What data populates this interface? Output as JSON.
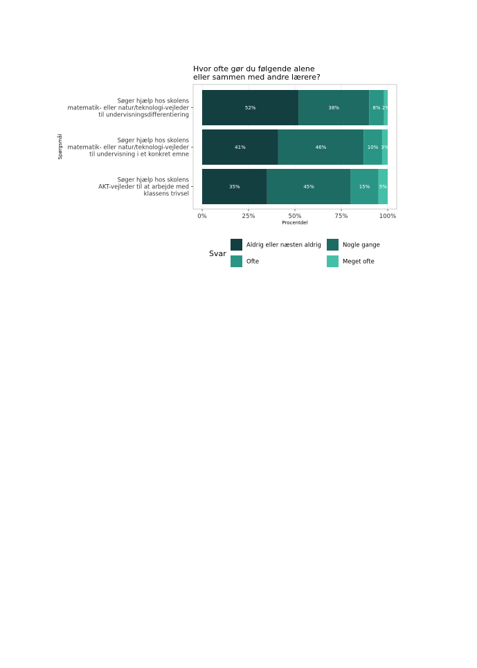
{
  "chart_data": {
    "type": "bar",
    "orientation": "horizontal",
    "stacked": true,
    "title_lines": [
      "Hvor ofte gør du følgende alene",
      "eller sammen med andre lærere?"
    ],
    "xlabel": "Procentdel",
    "ylabel": "Spørgsmål",
    "xlim": [
      0,
      100
    ],
    "x_ticks": [
      "0%",
      "25%",
      "50%",
      "75%",
      "100%"
    ],
    "x_tick_values": [
      0,
      25,
      50,
      75,
      100
    ],
    "grid": true,
    "categories": [
      [
        "Søger hjælp hos skolens",
        "matematik- eller natur/teknologi-vejleder",
        "til undervisningsdifferentiering"
      ],
      [
        "Søger hjælp hos skolens",
        "matematik- eller natur/teknologi-vejleder",
        "til undervisning i et konkret emne"
      ],
      [
        "Søger hjælp hos skolens",
        "AKT-vejleder til at arbejde med",
        "klassens trivsel"
      ]
    ],
    "series": [
      {
        "name": "Aldrig eller næsten aldrig",
        "color": "#143f41",
        "values": [
          52,
          41,
          35
        ],
        "labels": [
          "52%",
          "41%",
          "35%"
        ]
      },
      {
        "name": "Nogle gange",
        "color": "#1e6b64",
        "values": [
          38,
          46,
          45
        ],
        "labels": [
          "38%",
          "46%",
          "45%"
        ]
      },
      {
        "name": "Ofte",
        "color": "#2b9585",
        "values": [
          8,
          10,
          15
        ],
        "labels": [
          "8%",
          "10%",
          "15%"
        ]
      },
      {
        "name": "Meget ofte",
        "color": "#45c0a8",
        "values": [
          2,
          3,
          5
        ],
        "labels": [
          "2%",
          "3%",
          "5%"
        ]
      }
    ],
    "legend": {
      "title": "Svar",
      "position": "bottom"
    }
  }
}
